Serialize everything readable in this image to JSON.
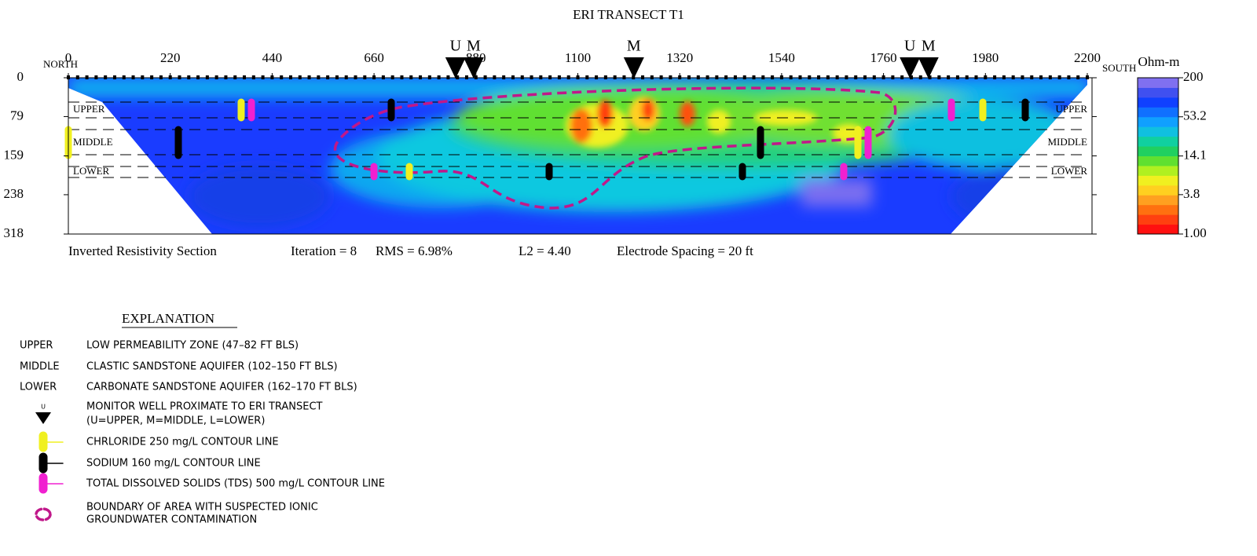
{
  "title": "ERI TRANSECT T1",
  "chart_data": {
    "type": "section",
    "xlim": [
      0,
      2200
    ],
    "xticks": [
      0,
      220,
      440,
      660,
      880,
      1100,
      1320,
      1540,
      1760,
      1980,
      2200
    ],
    "ylim": [
      318,
      0
    ],
    "yticks": [
      0,
      79,
      159,
      238,
      318
    ],
    "north_label": "NORTH",
    "south_label": "SOUTH",
    "zones": [
      "UPPER",
      "MIDDLE",
      "LOWER"
    ],
    "wells": [
      {
        "label": "U",
        "x": 836
      },
      {
        "label": "M",
        "x": 875
      },
      {
        "label": "M",
        "x": 1221
      },
      {
        "label": "U",
        "x": 1817
      },
      {
        "label": "M",
        "x": 1857
      }
    ],
    "colorbar": {
      "title": "Ohm-m",
      "scale": "log",
      "lim": [
        1,
        200
      ],
      "ticks": [
        {
          "value": 1,
          "label": "1.00"
        },
        3.8,
        14.1,
        53.2,
        200
      ],
      "colors": [
        "#ff1010",
        "#ff4010",
        "#ff7010",
        "#ffa020",
        "#ffd020",
        "#f0f020",
        "#b0f020",
        "#60e030",
        "#20d060",
        "#10d0a0",
        "#10c0e0",
        "#10a0ff",
        "#1070ff",
        "#1040ff",
        "#4050f0",
        "#8070f0"
      ]
    },
    "footer": [
      "Inverted Resistivity Section",
      "Iteration = 8",
      "RMS = 6.98%",
      "L2 = 4.40",
      "Electrode Spacing = 20 ft"
    ]
  },
  "explanation": {
    "title": "EXPLANATION",
    "items": [
      {
        "key": "UPPER",
        "text": "LOW PERMEABILITY ZONE (47–82 FT BLS)"
      },
      {
        "key": "MIDDLE",
        "text": "CLASTIC SANDSTONE AQUIFER (102–150 FT BLS)"
      },
      {
        "key": "LOWER",
        "text": "CARBONATE SANDSTONE AQUIFER (162–170 FT BLS)"
      },
      {
        "key": "U",
        "text": "MONITOR WELL PROXIMATE TO ERI TRANSECT",
        "text2": "(U=UPPER, M=MIDDLE, L=LOWER)"
      },
      {
        "text": "CHRLORIDE 250 mg/L CONTOUR LINE"
      },
      {
        "text": "SODIUM 160 mg/L CONTOUR LINE"
      },
      {
        "text": "TOTAL DISSOLVED SOLIDS (TDS) 500 mg/L CONTOUR LINE"
      },
      {
        "text": "BOUNDARY OF AREA WITH SUSPECTED IONIC",
        "text2": "GROUNDWATER CONTAMINATION"
      }
    ]
  }
}
